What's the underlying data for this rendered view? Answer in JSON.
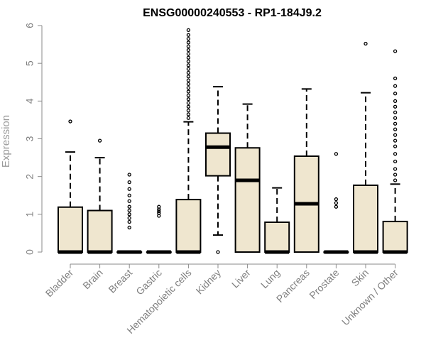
{
  "chart_data": {
    "type": "boxplot",
    "title": "ENSG00000240553 - RP1-184J9.2",
    "xlabel": "",
    "ylabel": "Expression",
    "ylim": [
      0,
      6
    ],
    "yticks": [
      "0",
      "1",
      "2",
      "3",
      "4",
      "5",
      "6"
    ],
    "grid": false,
    "colors": {
      "box_fill": "#efe6cf",
      "box_stroke": "#000000",
      "axis": "#8a8a8a",
      "tick_text": "#7f7f7f"
    },
    "categories": [
      "Bladder",
      "Brain",
      "Breast",
      "Gastric",
      "Hematopoietic cells",
      "Kidney",
      "Liver",
      "Lung",
      "Pancreas",
      "Prostate",
      "Skin",
      "Unknown / Other"
    ],
    "boxes": [
      {
        "category": "Bladder",
        "min": 0,
        "q1": 0,
        "median": 0,
        "q3": 1.19,
        "max": 2.65,
        "outliers": [
          3.46
        ]
      },
      {
        "category": "Brain",
        "min": 0,
        "q1": 0,
        "median": 0,
        "q3": 1.1,
        "max": 2.5,
        "outliers": [
          2.95
        ]
      },
      {
        "category": "Breast",
        "min": 0,
        "q1": 0,
        "median": 0,
        "q3": 0,
        "max": 0,
        "outliers": [
          0.65,
          0.8,
          0.9,
          1.0,
          1.1,
          1.2,
          1.35,
          1.5,
          1.67,
          1.85,
          2.05
        ]
      },
      {
        "category": "Gastric",
        "min": 0,
        "q1": 0,
        "median": 0,
        "q3": 0,
        "max": 0,
        "outliers": [
          0.96,
          1.03,
          1.08,
          1.13,
          1.2
        ]
      },
      {
        "category": "Hematopoietic cells",
        "min": 0,
        "q1": 0,
        "median": 0,
        "q3": 1.39,
        "max": 3.45,
        "outliers": [
          3.55,
          3.65,
          3.75,
          3.85,
          3.95,
          4.05,
          4.15,
          4.25,
          4.35,
          4.45,
          4.55,
          4.65,
          4.75,
          4.85,
          4.95,
          5.05,
          5.15,
          5.25,
          5.35,
          5.45,
          5.55,
          5.65,
          5.75,
          5.88
        ]
      },
      {
        "category": "Kidney",
        "min": 0.45,
        "q1": 2.02,
        "median": 2.78,
        "q3": 3.15,
        "max": 4.38,
        "outliers": [
          0
        ]
      },
      {
        "category": "Liver",
        "min": 0,
        "q1": 0,
        "median": 1.9,
        "q3": 2.76,
        "max": 3.92,
        "outliers": []
      },
      {
        "category": "Lung",
        "min": 0,
        "q1": 0,
        "median": 0,
        "q3": 0.79,
        "max": 1.7,
        "outliers": []
      },
      {
        "category": "Pancreas",
        "min": 0,
        "q1": 0,
        "median": 1.28,
        "q3": 2.54,
        "max": 4.32,
        "outliers": []
      },
      {
        "category": "Prostate",
        "min": 0,
        "q1": 0,
        "median": 0,
        "q3": 0,
        "max": 0,
        "outliers": [
          1.2,
          1.3,
          1.4,
          2.6
        ]
      },
      {
        "category": "Skin",
        "min": 0,
        "q1": 0,
        "median": 0,
        "q3": 1.77,
        "max": 4.22,
        "outliers": [
          5.52
        ]
      },
      {
        "category": "Unknown / Other",
        "min": 0,
        "q1": 0,
        "median": 0,
        "q3": 0.81,
        "max": 1.8,
        "outliers": [
          1.9,
          2.05,
          2.2,
          2.4,
          2.6,
          2.8,
          2.95,
          3.1,
          3.25,
          3.4,
          3.55,
          3.7,
          3.85,
          4.0,
          4.2,
          4.4,
          4.6,
          5.32
        ]
      }
    ]
  }
}
